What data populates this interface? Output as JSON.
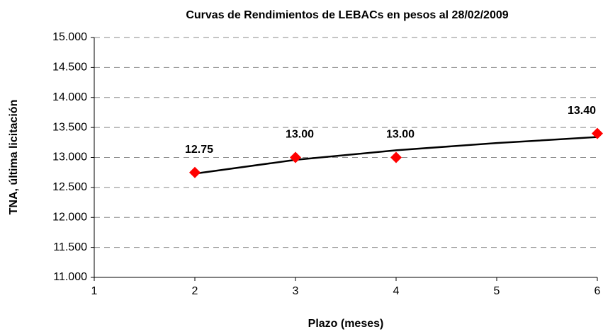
{
  "chart_data": {
    "type": "scatter",
    "title": "Curvas de Rendimientos de LEBACs en pesos al 28/02/2009",
    "xlabel": "Plazo (meses)",
    "ylabel": "TNA, última licitación",
    "series": [
      {
        "color": "#ff0000",
        "x": [
          2,
          3,
          4,
          6
        ],
        "values": [
          12.75,
          13.0,
          13.0,
          13.4
        ],
        "value_labels": [
          "12.75",
          "13.00",
          "13.00",
          "13.40"
        ]
      }
    ],
    "trendline": {
      "color": "#000000",
      "x": [
        2,
        3,
        4,
        5,
        6
      ],
      "values": [
        12.73,
        12.96,
        13.12,
        13.24,
        13.34
      ]
    },
    "xlim": [
      1,
      6
    ],
    "xticks": [
      1,
      2,
      3,
      4,
      5,
      6
    ],
    "ylim": [
      11,
      15
    ],
    "yticks": [
      {
        "value": 11,
        "label": "11.000"
      },
      {
        "value": 11.5,
        "label": "11.500"
      },
      {
        "value": 12,
        "label": "12.000"
      },
      {
        "value": 12.5,
        "label": "12.500"
      },
      {
        "value": 13,
        "label": "13.000"
      },
      {
        "value": 13.5,
        "label": "13.500"
      },
      {
        "value": 14,
        "label": "14.000"
      },
      {
        "value": 14.5,
        "label": "14.500"
      },
      {
        "value": 15,
        "label": "15.000"
      }
    ],
    "grid": true
  }
}
